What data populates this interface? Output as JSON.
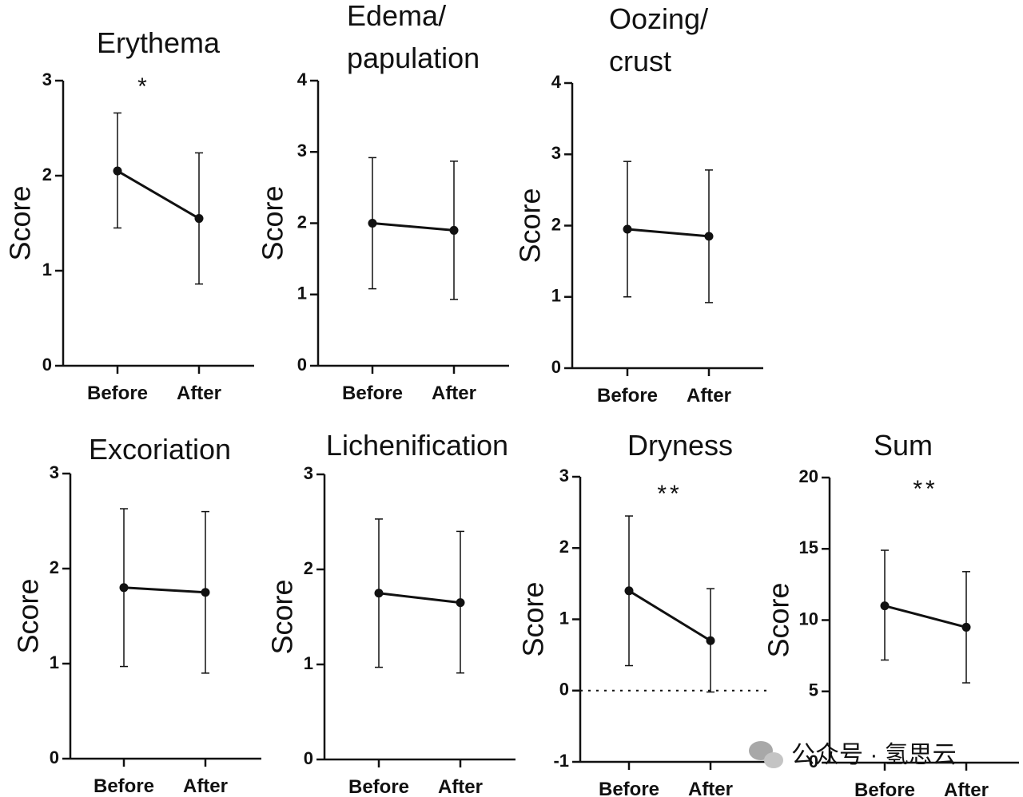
{
  "chart_data": [
    {
      "type": "line",
      "title": [
        "Erythema"
      ],
      "ylabel": "Score",
      "categories": [
        "Before",
        "After"
      ],
      "ylim": [
        0,
        3
      ],
      "yticks": [
        0,
        1,
        2,
        3
      ],
      "values": [
        2.05,
        1.55
      ],
      "err_low": [
        1.45,
        0.86
      ],
      "err_high": [
        2.66,
        2.24
      ],
      "significance": "*"
    },
    {
      "type": "line",
      "title": [
        "Edema/",
        "papulation"
      ],
      "ylabel": "Score",
      "categories": [
        "Before",
        "After"
      ],
      "ylim": [
        0,
        4
      ],
      "yticks": [
        0,
        1,
        2,
        3,
        4
      ],
      "values": [
        2.0,
        1.9
      ],
      "err_low": [
        1.08,
        0.93
      ],
      "err_high": [
        2.92,
        2.87
      ],
      "significance": ""
    },
    {
      "type": "line",
      "title": [
        "Oozing/",
        "crust"
      ],
      "ylabel": "Score",
      "categories": [
        "Before",
        "After"
      ],
      "ylim": [
        0,
        4
      ],
      "yticks": [
        0,
        1,
        2,
        3,
        4
      ],
      "values": [
        1.95,
        1.85
      ],
      "err_low": [
        1.0,
        0.92
      ],
      "err_high": [
        2.9,
        2.78
      ],
      "significance": ""
    },
    {
      "type": "line",
      "title": [
        "Excoriation"
      ],
      "ylabel": "Score",
      "categories": [
        "Before",
        "After"
      ],
      "ylim": [
        0,
        3
      ],
      "yticks": [
        0,
        1,
        2,
        3
      ],
      "values": [
        1.8,
        1.75
      ],
      "err_low": [
        0.97,
        0.9
      ],
      "err_high": [
        2.63,
        2.6
      ],
      "significance": ""
    },
    {
      "type": "line",
      "title": [
        "Lichenification"
      ],
      "ylabel": "Score",
      "categories": [
        "Before",
        "After"
      ],
      "ylim": [
        0,
        3
      ],
      "yticks": [
        0,
        1,
        2,
        3
      ],
      "values": [
        1.75,
        1.65
      ],
      "err_low": [
        0.97,
        0.91
      ],
      "err_high": [
        2.53,
        2.4
      ],
      "significance": ""
    },
    {
      "type": "line",
      "title": [
        "Dryness"
      ],
      "ylabel": "Score",
      "categories": [
        "Before",
        "After"
      ],
      "ylim": [
        -1,
        3
      ],
      "yticks": [
        -1,
        0,
        1,
        2,
        3
      ],
      "values": [
        1.4,
        0.7
      ],
      "err_low": [
        0.35,
        -0.02
      ],
      "err_high": [
        2.45,
        1.43
      ],
      "significance": "**",
      "reference_line": 0
    },
    {
      "type": "line",
      "title": [
        "Sum"
      ],
      "ylabel": "Score",
      "categories": [
        "Before",
        "After"
      ],
      "ylim": [
        0,
        20
      ],
      "yticks": [
        0,
        5,
        10,
        15,
        20
      ],
      "values": [
        11.0,
        9.5
      ],
      "err_low": [
        7.2,
        5.6
      ],
      "err_high": [
        14.9,
        13.4
      ],
      "significance": "**"
    }
  ],
  "watermark": "公众号 · 氢思云",
  "watermark_icon": "wechat-icon"
}
